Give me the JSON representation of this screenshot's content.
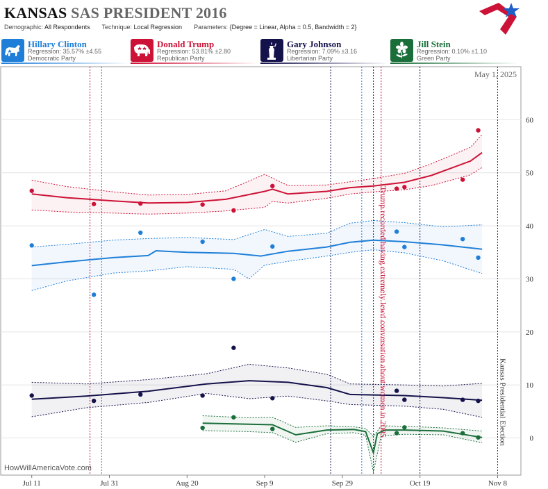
{
  "header": {
    "state": "KANSAS",
    "title_rest": "SAS PRESIDENT 2016",
    "demographic_label": "Demographic:",
    "demographic": "All Respondents",
    "technique_label": "Technique:",
    "technique": "Local Regression",
    "parameters_label": "Parameters:",
    "parameters": "{Degree = Linear, Alpha = 0.5, Bandwidth = 2}"
  },
  "candidates": [
    {
      "name": "Hillary Clinton",
      "regression": "Regression: 35.57% ±4.55",
      "party": "Democratic Party",
      "color": "#1f7fd8",
      "icon": "donkey-icon"
    },
    {
      "name": "Donald Trump",
      "regression": "Regression: 53.81% ±2.80",
      "party": "Republican Party",
      "color": "#cc1236",
      "icon": "elephant-icon"
    },
    {
      "name": "Gary Johnson",
      "regression": "Regression: 7.09% ±3.16",
      "party": "Libertarian Party",
      "color": "#14124a",
      "icon": "liberty-statue-icon"
    },
    {
      "name": "Jill Stein",
      "regression": "Regression: 0.10% ±1.10",
      "party": "Green Party",
      "color": "#1a6e3a",
      "icon": "green-flower-icon"
    }
  ],
  "watermark": "HowWillAmericaVote.com",
  "chart_data": {
    "type": "line",
    "date_label": "May 1, 2025",
    "x_ticks": [
      "Jul 11",
      "Jul 31",
      "Aug 20",
      "Sep 9",
      "Sep 29",
      "Oct 19",
      "Nov 8"
    ],
    "xlim": [
      "2016-07-03",
      "2016-11-14"
    ],
    "ylim": [
      -7,
      70
    ],
    "y_ticks": [
      0,
      10,
      20,
      30,
      40,
      50,
      60
    ],
    "grid": true,
    "annotations": [
      {
        "date": "2016-10-08",
        "text": "Trump recorded having extremely lewd conversation about women in 2005",
        "color": "#cc1236"
      },
      {
        "date": "2016-11-08",
        "text": "Kansas Presidential Election",
        "color": "#333333"
      }
    ],
    "event_lines": [
      {
        "date": "2016-07-26",
        "color": "#cc1236"
      },
      {
        "date": "2016-07-29",
        "color": "#1f7fd8"
      },
      {
        "date": "2016-09-26",
        "color": "#14124a"
      },
      {
        "date": "2016-10-04",
        "color": "#1f7fd8"
      },
      {
        "date": "2016-10-07",
        "color": "#14124a"
      },
      {
        "date": "2016-10-09",
        "color": "#cc1236"
      },
      {
        "date": "2016-10-19",
        "color": "#14124a"
      },
      {
        "date": "2016-11-08",
        "color": "#333333"
      }
    ],
    "series": [
      {
        "name": "Donald Trump",
        "color": "#cc1236",
        "points": [
          [
            "2016-07-11",
            46.6
          ],
          [
            "2016-07-27",
            44.1
          ],
          [
            "2016-08-08",
            44.2
          ],
          [
            "2016-08-24",
            44.0
          ],
          [
            "2016-09-01",
            42.9
          ],
          [
            "2016-09-11",
            47.5
          ],
          [
            "2016-10-13",
            47.0
          ],
          [
            "2016-10-15",
            47.3
          ],
          [
            "2016-10-30",
            48.7
          ],
          [
            "2016-11-03",
            58.0
          ]
        ],
        "line": [
          [
            "2016-07-11",
            46
          ],
          [
            "2016-07-20",
            45.3
          ],
          [
            "2016-08-01",
            44.7
          ],
          [
            "2016-08-10",
            44.3
          ],
          [
            "2016-08-20",
            44.4
          ],
          [
            "2016-08-30",
            45
          ],
          [
            "2016-09-09",
            46.5
          ],
          [
            "2016-09-11",
            46.9
          ],
          [
            "2016-09-15",
            46
          ],
          [
            "2016-09-25",
            46.5
          ],
          [
            "2016-10-01",
            47.2
          ],
          [
            "2016-10-07",
            47.5
          ],
          [
            "2016-10-15",
            48.2
          ],
          [
            "2016-10-22",
            49.5
          ],
          [
            "2016-11-01",
            52.2
          ],
          [
            "2016-11-04",
            53.8
          ]
        ],
        "upper": [
          [
            "2016-07-11",
            48.6
          ],
          [
            "2016-07-20",
            47.4
          ],
          [
            "2016-08-01",
            46.4
          ],
          [
            "2016-08-10",
            45.8
          ],
          [
            "2016-08-20",
            45.9
          ],
          [
            "2016-08-30",
            46.6
          ],
          [
            "2016-09-09",
            49.7
          ],
          [
            "2016-09-11",
            49
          ],
          [
            "2016-09-15",
            47.6
          ],
          [
            "2016-09-25",
            47.7
          ],
          [
            "2016-10-01",
            48.3
          ],
          [
            "2016-10-07",
            48.9
          ],
          [
            "2016-10-15",
            49.9
          ],
          [
            "2016-10-22",
            51.7
          ],
          [
            "2016-11-01",
            54.8
          ],
          [
            "2016-11-04",
            57.2
          ]
        ],
        "lower": [
          [
            "2016-07-11",
            43
          ],
          [
            "2016-07-20",
            42.6
          ],
          [
            "2016-08-01",
            42.4
          ],
          [
            "2016-08-10",
            42.2
          ],
          [
            "2016-08-20",
            42.4
          ],
          [
            "2016-08-30",
            42.8
          ],
          [
            "2016-09-09",
            43.5
          ],
          [
            "2016-09-11",
            44.6
          ],
          [
            "2016-09-15",
            44.3
          ],
          [
            "2016-09-25",
            45.2
          ],
          [
            "2016-10-01",
            46
          ],
          [
            "2016-10-07",
            46.4
          ],
          [
            "2016-10-15",
            46.8
          ],
          [
            "2016-10-22",
            47.6
          ],
          [
            "2016-11-01",
            49.6
          ],
          [
            "2016-11-04",
            51
          ]
        ]
      },
      {
        "name": "Hillary Clinton",
        "color": "#1f7fd8",
        "points": [
          [
            "2016-07-11",
            36.3
          ],
          [
            "2016-07-27",
            27.0
          ],
          [
            "2016-08-08",
            38.7
          ],
          [
            "2016-08-24",
            37.0
          ],
          [
            "2016-09-01",
            30.0
          ],
          [
            "2016-09-11",
            36.1
          ],
          [
            "2016-10-13",
            38.9
          ],
          [
            "2016-10-15",
            36.0
          ],
          [
            "2016-10-30",
            37.5
          ],
          [
            "2016-11-03",
            34.0
          ]
        ],
        "line": [
          [
            "2016-07-11",
            32.5
          ],
          [
            "2016-07-20",
            33.2
          ],
          [
            "2016-08-01",
            34.0
          ],
          [
            "2016-08-10",
            34.4
          ],
          [
            "2016-08-12",
            35.3
          ],
          [
            "2016-08-20",
            35.0
          ],
          [
            "2016-09-01",
            34.8
          ],
          [
            "2016-09-08",
            34.3
          ],
          [
            "2016-09-15",
            35.2
          ],
          [
            "2016-09-25",
            36.0
          ],
          [
            "2016-10-01",
            36.9
          ],
          [
            "2016-10-07",
            37.3
          ],
          [
            "2016-10-15",
            37.0
          ],
          [
            "2016-10-25",
            36.4
          ],
          [
            "2016-11-04",
            35.6
          ]
        ],
        "upper": [
          [
            "2016-07-11",
            36.0
          ],
          [
            "2016-07-20",
            36.5
          ],
          [
            "2016-08-01",
            37.3
          ],
          [
            "2016-08-10",
            37.6
          ],
          [
            "2016-08-20",
            37.8
          ],
          [
            "2016-09-01",
            37.4
          ],
          [
            "2016-09-09",
            39.3
          ],
          [
            "2016-09-15",
            38.0
          ],
          [
            "2016-09-25",
            38.6
          ],
          [
            "2016-10-01",
            40.5
          ],
          [
            "2016-10-07",
            41.0
          ],
          [
            "2016-10-15",
            40.6
          ],
          [
            "2016-10-25",
            39.8
          ],
          [
            "2016-11-04",
            40.2
          ]
        ],
        "lower": [
          [
            "2016-07-11",
            27.8
          ],
          [
            "2016-07-20",
            29.6
          ],
          [
            "2016-08-01",
            31.1
          ],
          [
            "2016-08-10",
            31.5
          ],
          [
            "2016-08-20",
            32.3
          ],
          [
            "2016-09-01",
            31.8
          ],
          [
            "2016-09-05",
            30.0
          ],
          [
            "2016-09-09",
            32.6
          ],
          [
            "2016-09-15",
            33.3
          ],
          [
            "2016-09-25",
            34.3
          ],
          [
            "2016-10-01",
            35.0
          ],
          [
            "2016-10-07",
            35.5
          ],
          [
            "2016-10-15",
            34.9
          ],
          [
            "2016-10-25",
            33.4
          ],
          [
            "2016-11-04",
            31.0
          ]
        ]
      },
      {
        "name": "Gary Johnson",
        "color": "#14124a",
        "points": [
          [
            "2016-07-11",
            8.0
          ],
          [
            "2016-07-27",
            7.0
          ],
          [
            "2016-08-08",
            8.2
          ],
          [
            "2016-08-24",
            8.0
          ],
          [
            "2016-09-01",
            17.0
          ],
          [
            "2016-09-11",
            7.5
          ],
          [
            "2016-10-13",
            8.9
          ],
          [
            "2016-10-15",
            7.2
          ],
          [
            "2016-10-30",
            7.2
          ],
          [
            "2016-11-03",
            7.0
          ]
        ],
        "line": [
          [
            "2016-07-11",
            7.3
          ],
          [
            "2016-07-25",
            7.9
          ],
          [
            "2016-08-10",
            8.8
          ],
          [
            "2016-08-25",
            10.2
          ],
          [
            "2016-09-05",
            10.8
          ],
          [
            "2016-09-15",
            10.5
          ],
          [
            "2016-09-25",
            9.5
          ],
          [
            "2016-10-01",
            8.2
          ],
          [
            "2016-10-15",
            8.0
          ],
          [
            "2016-10-25",
            7.6
          ],
          [
            "2016-11-04",
            7.1
          ]
        ],
        "upper": [
          [
            "2016-07-11",
            10.5
          ],
          [
            "2016-07-25",
            10.2
          ],
          [
            "2016-08-10",
            11.0
          ],
          [
            "2016-08-25",
            12.1
          ],
          [
            "2016-09-05",
            13.9
          ],
          [
            "2016-09-15",
            13.2
          ],
          [
            "2016-09-25",
            12.0
          ],
          [
            "2016-10-01",
            10.2
          ],
          [
            "2016-10-15",
            10.0
          ],
          [
            "2016-10-25",
            9.8
          ],
          [
            "2016-11-04",
            10.3
          ]
        ],
        "lower": [
          [
            "2016-07-11",
            4.0
          ],
          [
            "2016-07-25",
            5.7
          ],
          [
            "2016-08-10",
            6.7
          ],
          [
            "2016-08-25",
            8.4
          ],
          [
            "2016-09-05",
            7.4
          ],
          [
            "2016-09-15",
            7.9
          ],
          [
            "2016-09-25",
            7.0
          ],
          [
            "2016-10-01",
            6.3
          ],
          [
            "2016-10-15",
            6.0
          ],
          [
            "2016-10-25",
            5.4
          ],
          [
            "2016-11-04",
            3.9
          ]
        ]
      },
      {
        "name": "Jill Stein",
        "color": "#1a6e3a",
        "points": [
          [
            "2016-08-24",
            1.9
          ],
          [
            "2016-09-01",
            3.9
          ],
          [
            "2016-09-11",
            1.7
          ],
          [
            "2016-10-13",
            0.9
          ],
          [
            "2016-10-15",
            2.0
          ],
          [
            "2016-10-30",
            0.9
          ],
          [
            "2016-11-03",
            0.1
          ]
        ],
        "line": [
          [
            "2016-08-24",
            2.8
          ],
          [
            "2016-09-05",
            2.6
          ],
          [
            "2016-09-11",
            2.5
          ],
          [
            "2016-09-17",
            0.6
          ],
          [
            "2016-09-25",
            1.5
          ],
          [
            "2016-10-02",
            1.6
          ],
          [
            "2016-10-05",
            1.2
          ],
          [
            "2016-10-07",
            -2.8
          ],
          [
            "2016-10-08",
            0.8
          ],
          [
            "2016-10-10",
            1.5
          ],
          [
            "2016-10-15",
            1.5
          ],
          [
            "2016-10-25",
            1.3
          ],
          [
            "2016-11-04",
            0.1
          ]
        ],
        "upper": [
          [
            "2016-08-24",
            4.2
          ],
          [
            "2016-09-05",
            3.8
          ],
          [
            "2016-09-11",
            3.9
          ],
          [
            "2016-09-17",
            2.0
          ],
          [
            "2016-09-25",
            2.3
          ],
          [
            "2016-10-02",
            2.1
          ],
          [
            "2016-10-05",
            1.8
          ],
          [
            "2016-10-07",
            0.3
          ],
          [
            "2016-10-09",
            2.3
          ],
          [
            "2016-10-15",
            2.2
          ],
          [
            "2016-10-25",
            1.9
          ],
          [
            "2016-11-04",
            1.3
          ]
        ],
        "lower": [
          [
            "2016-08-24",
            1.4
          ],
          [
            "2016-09-05",
            1.2
          ],
          [
            "2016-09-11",
            1.0
          ],
          [
            "2016-09-17",
            -0.8
          ],
          [
            "2016-09-25",
            0.8
          ],
          [
            "2016-10-02",
            1.0
          ],
          [
            "2016-10-05",
            0.5
          ],
          [
            "2016-10-07",
            -6.4
          ],
          [
            "2016-10-09",
            0.4
          ],
          [
            "2016-10-15",
            0.7
          ],
          [
            "2016-10-25",
            0.6
          ],
          [
            "2016-11-04",
            -0.9
          ]
        ]
      }
    ]
  }
}
